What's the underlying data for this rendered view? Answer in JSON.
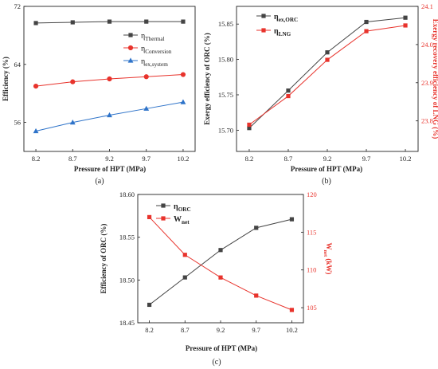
{
  "figure": {
    "panel_labels": [
      "(a)",
      "(b)",
      "(c)"
    ]
  },
  "colors": {
    "black": "#444444",
    "red": "#e8332c",
    "blue": "#2e73c9",
    "frame": "#222222"
  },
  "chart_data": [
    {
      "id": "a",
      "type": "line",
      "categories": [
        "8.2",
        "8.7",
        "9.2",
        "9.7",
        "10.2"
      ],
      "xlabel": "Pressure of HPT (MPa)",
      "ylabel": "Efficiency (%)",
      "ylim": [
        52,
        72
      ],
      "yticks": [
        56,
        64,
        72
      ],
      "legend_position": "right",
      "series": [
        {
          "name_main": "η",
          "name_sub": "Thermal",
          "color": "#444444",
          "marker": "square",
          "axis": "left",
          "values": [
            69.7,
            69.8,
            69.9,
            69.9,
            69.9
          ]
        },
        {
          "name_main": "η",
          "name_sub": "Conversion",
          "color": "#e8332c",
          "marker": "circle",
          "axis": "left",
          "values": [
            61.0,
            61.6,
            62.0,
            62.3,
            62.6
          ]
        },
        {
          "name_main": "η",
          "name_sub": "ex,system",
          "color": "#2e73c9",
          "marker": "triangle",
          "axis": "left",
          "values": [
            54.8,
            56.0,
            57.0,
            57.9,
            58.8
          ]
        }
      ]
    },
    {
      "id": "b",
      "type": "line",
      "categories": [
        "8.2",
        "8.7",
        "9.2",
        "9.7",
        "10.2"
      ],
      "xlabel": "Pressure of HPT (MPa)",
      "ylabel": "Exergy efficiency of ORC (%)",
      "y2label": "Exergy recovery efficiency of LNG (%)",
      "ylim": [
        15.67,
        15.875
      ],
      "yticks": [
        15.7,
        15.75,
        15.8,
        15.85
      ],
      "y2lim": [
        23.72,
        24.1
      ],
      "y2ticks": [
        23.8,
        23.9,
        24.0,
        24.1
      ],
      "legend_position": "top-left",
      "series": [
        {
          "name_main": "η",
          "name_sub": "ex,ORC",
          "color": "#444444",
          "marker": "square",
          "axis": "left",
          "values": [
            15.703,
            15.756,
            15.81,
            15.853,
            15.859
          ]
        },
        {
          "name_main": "η",
          "name_sub": "LNG",
          "color": "#e8332c",
          "marker": "square",
          "axis": "right",
          "values": [
            23.79,
            23.865,
            23.96,
            24.035,
            24.05
          ]
        }
      ]
    },
    {
      "id": "c",
      "type": "line",
      "categories": [
        "8.2",
        "8.7",
        "9.2",
        "9.7",
        "10.2"
      ],
      "xlabel": "Pressure of HPT (MPa)",
      "ylabel": "Efficiency of ORC (%)",
      "y2label_main": "W",
      "y2label_sub": "net",
      "y2label_unit": " (kW)",
      "ylim": [
        18.45,
        18.6
      ],
      "yticks": [
        18.45,
        18.5,
        18.55,
        18.6
      ],
      "y2lim": [
        103,
        120
      ],
      "y2ticks": [
        105,
        110,
        115,
        120
      ],
      "legend_position": "top-left",
      "series": [
        {
          "name_main": "η",
          "name_sub": "ORC",
          "color": "#444444",
          "marker": "square",
          "axis": "left",
          "values": [
            18.471,
            18.503,
            18.535,
            18.561,
            18.571
          ]
        },
        {
          "name_main": "W",
          "name_sub": "net",
          "color": "#e8332c",
          "marker": "square",
          "axis": "right",
          "values": [
            117.0,
            112.0,
            109.0,
            106.6,
            104.7
          ]
        }
      ]
    }
  ]
}
